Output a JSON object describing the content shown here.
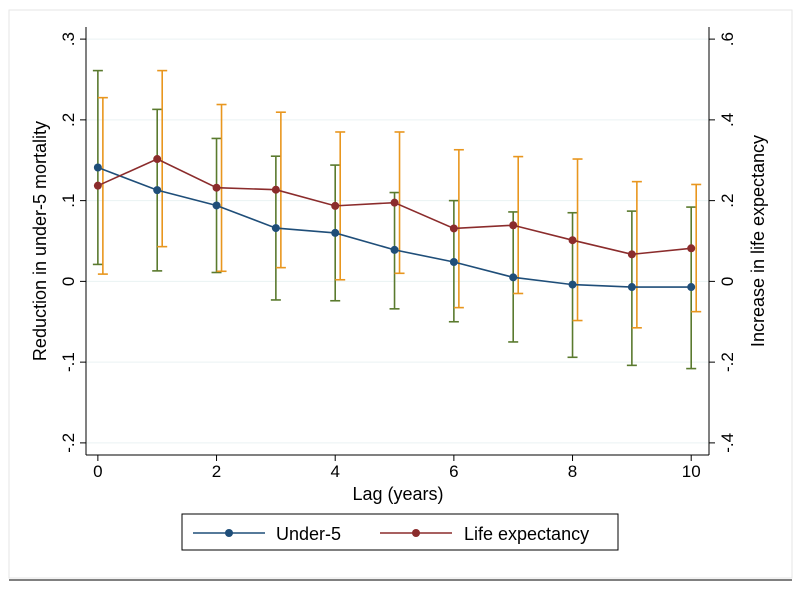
{
  "chart_data": {
    "type": "line",
    "xlabel": "Lag (years)",
    "ylabel_left": "Reduction in under-5 mortality",
    "ylabel_right": "Increase in life expectancy",
    "x_ticks": [
      0,
      2,
      4,
      6,
      8,
      10
    ],
    "y_left_ticks": [
      -0.2,
      -0.1,
      0,
      0.1,
      0.2,
      0.3
    ],
    "y_left_tick_labels": [
      "-.2",
      "-.1",
      "0",
      ".1",
      ".2",
      ".3"
    ],
    "y_right_ticks": [
      -0.4,
      -0.2,
      0,
      0.2,
      0.4,
      0.6
    ],
    "y_right_tick_labels": [
      "-.4",
      "-.2",
      "0",
      ".2",
      ".4",
      ".6"
    ],
    "ylim_left": [
      -0.215,
      0.315
    ],
    "ylim_right": [
      -0.43,
      0.63
    ],
    "xlim": [
      -0.2,
      10.3
    ],
    "grid": true,
    "legend_position": "bottom",
    "series": [
      {
        "name": "Under-5",
        "axis": "left",
        "color": "#1f4e79",
        "ci_color": "#5a7a2e",
        "x": [
          0,
          1,
          2,
          3,
          4,
          5,
          6,
          7,
          8,
          9,
          10
        ],
        "values": [
          0.141,
          0.113,
          0.094,
          0.066,
          0.06,
          0.039,
          0.024,
          0.005,
          -0.004,
          -0.007,
          -0.007
        ],
        "ci_low": [
          0.021,
          0.013,
          0.011,
          -0.023,
          -0.024,
          -0.034,
          -0.05,
          -0.075,
          -0.094,
          -0.104,
          -0.108
        ],
        "ci_high": [
          0.261,
          0.213,
          0.177,
          0.155,
          0.144,
          0.11,
          0.1,
          0.086,
          0.085,
          0.087,
          0.092
        ]
      },
      {
        "name": "Life expectancy",
        "axis": "right",
        "color": "#8b2c2c",
        "ci_color": "#e8961e",
        "x": [
          0,
          1,
          2,
          3,
          4,
          5,
          6,
          7,
          8,
          9,
          10
        ],
        "values": [
          0.237,
          0.303,
          0.232,
          0.227,
          0.187,
          0.195,
          0.131,
          0.139,
          0.102,
          0.067,
          0.082
        ],
        "ci_low": [
          0.018,
          0.086,
          0.025,
          0.034,
          0.004,
          0.02,
          -0.065,
          -0.03,
          -0.097,
          -0.115,
          -0.075
        ],
        "ci_high": [
          0.455,
          0.522,
          0.438,
          0.419,
          0.37,
          0.37,
          0.326,
          0.309,
          0.303,
          0.247,
          0.24
        ]
      }
    ]
  }
}
